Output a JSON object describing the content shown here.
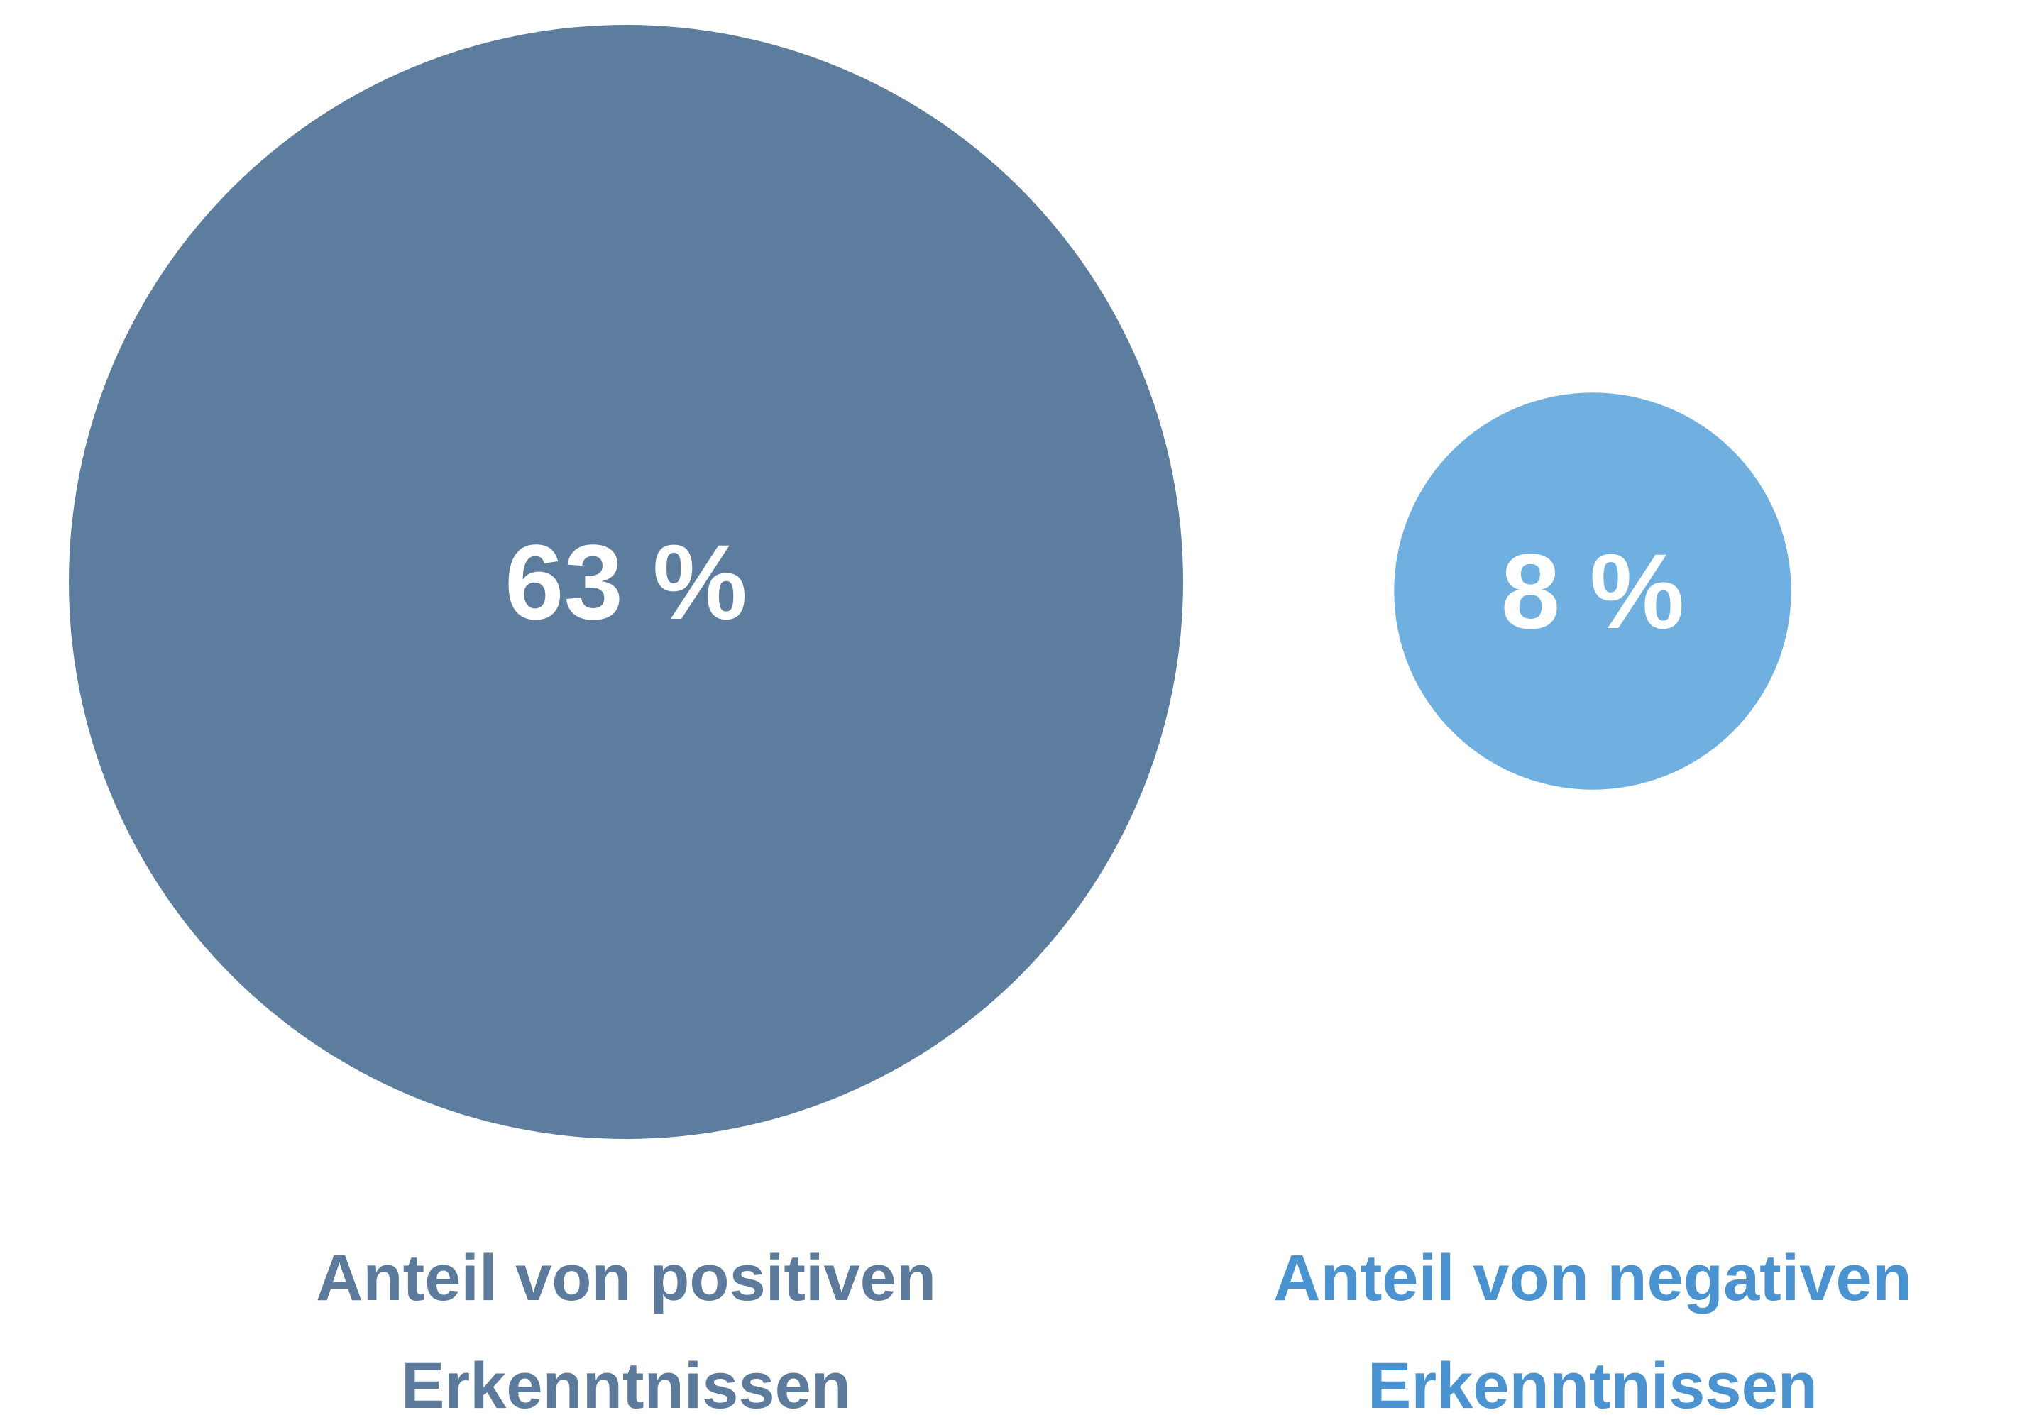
{
  "chart_data": {
    "type": "bubble",
    "categories": [
      "Anteil von positiven Erkenntnissen",
      "Anteil von negativen Erkenntnissen"
    ],
    "values": [
      63,
      8
    ],
    "value_labels": [
      "63 %",
      "8 %"
    ],
    "colors": [
      "#5d7d9f",
      "#6fb0e0"
    ],
    "label_colors": [
      "#5b7a9c",
      "#4a93d0"
    ]
  }
}
